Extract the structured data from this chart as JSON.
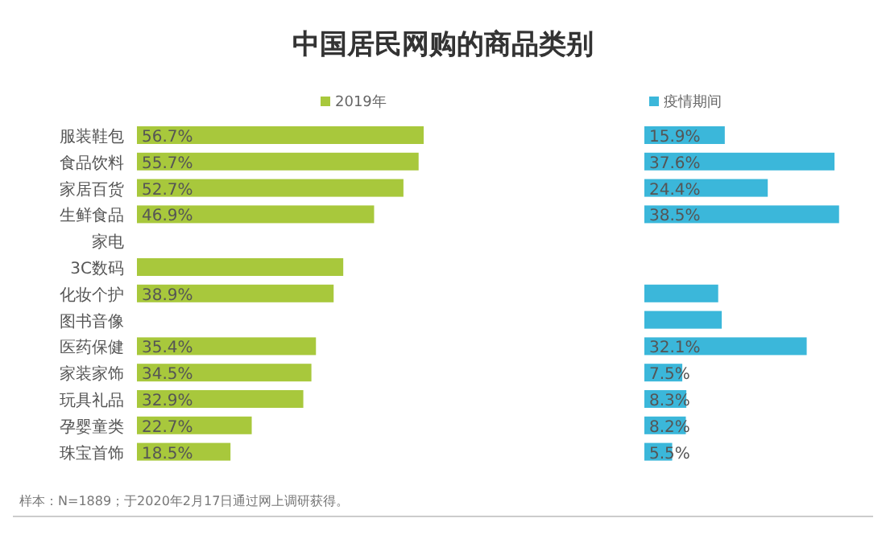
{
  "chart_data": [
    {
      "type": "bar",
      "orientation": "horizontal",
      "title": "中国居民网购的商品类别",
      "categories": [
        "服装鞋包",
        "食品饮料",
        "家居百货",
        "生鲜食品",
        "家电",
        "3C数码",
        "化妆个护",
        "图书音像",
        "医药保健",
        "家装家饰",
        "玩具礼品",
        "孕婴童类",
        "珠宝首饰"
      ],
      "series": [
        {
          "name": "2019年",
          "color": "#a8c83c",
          "values": [
            56.7,
            55.7,
            52.7,
            46.9,
            null,
            40.8,
            38.9,
            null,
            35.4,
            34.5,
            32.9,
            22.7,
            18.5
          ],
          "value_labels": [
            "56.7%",
            "55.7%",
            "52.7%",
            "46.9%",
            null,
            null,
            "38.9%",
            null,
            "35.4%",
            "34.5%",
            "32.9%",
            "22.7%",
            "18.5%"
          ]
        }
      ],
      "legend": "top",
      "annotations": [
        "样本：N=1889；于2020年2月17日通过网上调研获得。"
      ]
    },
    {
      "type": "bar",
      "orientation": "horizontal",
      "categories": [
        null,
        null,
        null,
        null,
        null,
        null,
        null,
        null,
        null,
        null,
        null,
        null,
        null
      ],
      "series": [
        {
          "name": "疫情期间",
          "color": "#3bb7da",
          "values": [
            15.9,
            37.6,
            24.4,
            38.5,
            null,
            null,
            14.6,
            15.3,
            32.1,
            7.5,
            8.3,
            8.2,
            5.5
          ],
          "value_labels": [
            "15.9%",
            "37.6%",
            "24.4%",
            "38.5%",
            null,
            null,
            null,
            null,
            "32.1%",
            "7.5%",
            "8.3%",
            "8.2%",
            "5.5%"
          ]
        }
      ],
      "legend": "top"
    }
  ]
}
